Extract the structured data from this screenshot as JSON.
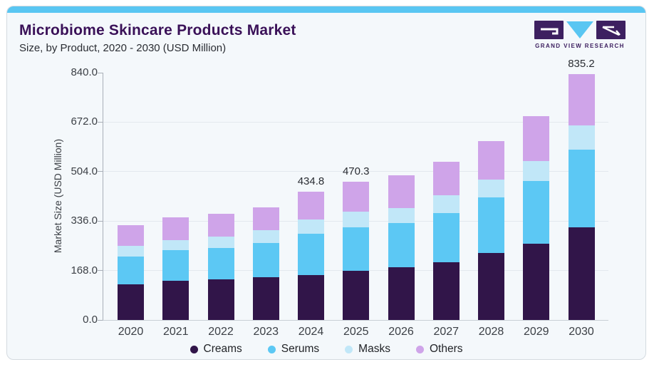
{
  "header": {
    "title": "Microbiome Skincare Products Market",
    "subtitle": "Size, by Product, 2020 - 2030 (USD Million)"
  },
  "logo": {
    "caption": "GRAND VIEW RESEARCH"
  },
  "colors": {
    "accent_bar": "#59c6f2",
    "title_text": "#3a1158",
    "logo_purple": "#3d2060",
    "creams": "#311549",
    "serums": "#5cc8f4",
    "masks": "#c1e7f8",
    "others": "#cfa4e9"
  },
  "chart_data": {
    "type": "bar",
    "stacked": true,
    "title": "Microbiome Skincare Products Market Size, by Product, 2020 - 2030 (USD Million)",
    "xlabel": "",
    "ylabel": "Market Size (USD Million)",
    "ylim": [
      0,
      840
    ],
    "yticks": [
      0.0,
      168.0,
      336.0,
      504.0,
      672.0,
      840.0
    ],
    "ytick_labels": [
      "0.0",
      "168.0",
      "336.0",
      "504.0",
      "672.0",
      "840.0"
    ],
    "grid": true,
    "legend_position": "bottom",
    "categories": [
      "2020",
      "2021",
      "2022",
      "2023",
      "2024",
      "2025",
      "2026",
      "2027",
      "2028",
      "2029",
      "2030"
    ],
    "series": [
      {
        "name": "Creams",
        "color_key": "creams",
        "values": [
          120,
          132,
          138,
          146,
          153,
          168,
          179,
          197,
          228,
          259,
          314.4
        ]
      },
      {
        "name": "Serums",
        "color_key": "serums",
        "values": [
          95,
          105,
          107,
          116,
          140,
          147,
          151,
          167,
          189,
          212,
          264.0
        ]
      },
      {
        "name": "Masks",
        "color_key": "masks",
        "values": [
          36,
          33,
          38,
          42,
          49,
          52,
          51,
          60,
          59,
          70,
          82.8
        ]
      },
      {
        "name": "Others",
        "color_key": "others",
        "values": [
          72,
          78,
          78,
          79,
          92.8,
          103.3,
          110,
          114,
          131,
          152,
          174.0
        ]
      }
    ],
    "value_labels": {
      "2024": "434.8",
      "2025": "470.3",
      "2030": "835.2"
    },
    "legend": [
      "Creams",
      "Serums",
      "Masks",
      "Others"
    ]
  }
}
